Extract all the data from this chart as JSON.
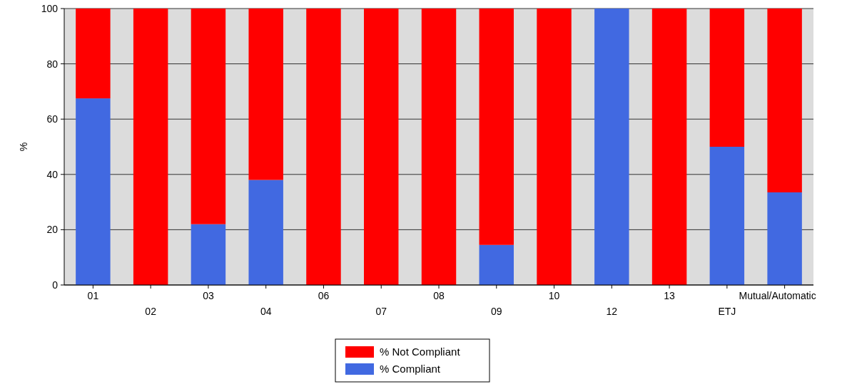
{
  "chart_data": {
    "type": "bar",
    "stacked": true,
    "ylabel": "%",
    "categories": [
      "01",
      "02",
      "03",
      "04",
      "06",
      "07",
      "08",
      "09",
      "10",
      "12",
      "13",
      "ETJ",
      "Mutual/Automatic"
    ],
    "series": [
      {
        "name": "% Compliant",
        "color": "#4169e1",
        "values": [
          67.5,
          0,
          22,
          38,
          0,
          0,
          0,
          14.5,
          0,
          100,
          0,
          50,
          33.5
        ]
      },
      {
        "name": "% Not Compliant",
        "color": "#ff0000",
        "values": [
          32.5,
          100,
          78,
          62,
          100,
          100,
          100,
          85.5,
          100,
          0,
          100,
          50,
          66.5
        ]
      }
    ],
    "ylim": [
      0,
      100
    ],
    "yticks": [
      0,
      20,
      40,
      60,
      80,
      100
    ],
    "grid": "y",
    "legend": "bottom"
  }
}
